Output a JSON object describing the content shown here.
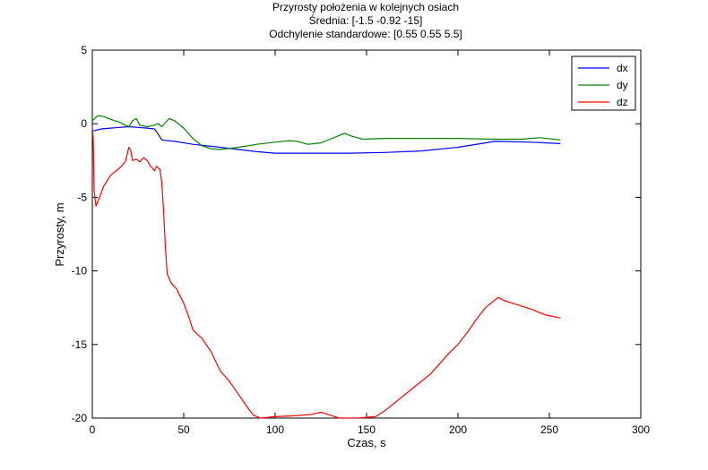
{
  "chart_data": {
    "type": "line",
    "title": [
      "Przyrosty położenia w kolejnych osiach",
      "Średnia: [-1.5 -0.92 -15]",
      "Odchylenie standardowe: [0.55 0.55 5.5]"
    ],
    "xlabel": "Czas, s",
    "ylabel": "Przyrosty, m",
    "xlim": [
      0,
      300
    ],
    "ylim": [
      -20,
      5
    ],
    "xticks": [
      0,
      50,
      100,
      150,
      200,
      250,
      300
    ],
    "yticks": [
      5,
      0,
      -5,
      -10,
      -15,
      -20
    ],
    "grid": false,
    "legend_position": "top-right",
    "series": [
      {
        "name": "dx",
        "color": "#0000ff",
        "points": [
          [
            0,
            -0.5
          ],
          [
            5,
            -0.35
          ],
          [
            10,
            -0.3
          ],
          [
            15,
            -0.25
          ],
          [
            20,
            -0.2
          ],
          [
            25,
            -0.25
          ],
          [
            30,
            -0.3
          ],
          [
            34,
            -0.35
          ],
          [
            36,
            -0.7
          ],
          [
            38,
            -1.1
          ],
          [
            45,
            -1.2
          ],
          [
            55,
            -1.4
          ],
          [
            70,
            -1.6
          ],
          [
            80,
            -1.75
          ],
          [
            90,
            -1.9
          ],
          [
            100,
            -2.0
          ],
          [
            120,
            -2.0
          ],
          [
            140,
            -2.0
          ],
          [
            160,
            -1.95
          ],
          [
            180,
            -1.85
          ],
          [
            200,
            -1.6
          ],
          [
            215,
            -1.3
          ],
          [
            220,
            -1.2
          ],
          [
            240,
            -1.25
          ],
          [
            256,
            -1.35
          ]
        ]
      },
      {
        "name": "dy",
        "color": "#008000",
        "points": [
          [
            0,
            0.2
          ],
          [
            3,
            0.55
          ],
          [
            6,
            0.5
          ],
          [
            10,
            0.3
          ],
          [
            15,
            0.1
          ],
          [
            18,
            -0.1
          ],
          [
            20,
            -0.2
          ],
          [
            22,
            0.2
          ],
          [
            24,
            0.35
          ],
          [
            26,
            -0.1
          ],
          [
            30,
            -0.2
          ],
          [
            34,
            -0.1
          ],
          [
            36,
            0.0
          ],
          [
            38,
            -0.2
          ],
          [
            42,
            0.35
          ],
          [
            45,
            0.2
          ],
          [
            50,
            -0.3
          ],
          [
            55,
            -1.0
          ],
          [
            60,
            -1.5
          ],
          [
            65,
            -1.7
          ],
          [
            70,
            -1.75
          ],
          [
            80,
            -1.6
          ],
          [
            90,
            -1.4
          ],
          [
            100,
            -1.25
          ],
          [
            108,
            -1.15
          ],
          [
            112,
            -1.2
          ],
          [
            118,
            -1.4
          ],
          [
            125,
            -1.3
          ],
          [
            130,
            -1.05
          ],
          [
            134,
            -0.85
          ],
          [
            138,
            -0.65
          ],
          [
            142,
            -0.85
          ],
          [
            148,
            -1.05
          ],
          [
            160,
            -1.0
          ],
          [
            180,
            -1.0
          ],
          [
            200,
            -1.0
          ],
          [
            220,
            -1.05
          ],
          [
            235,
            -1.05
          ],
          [
            245,
            -0.95
          ],
          [
            256,
            -1.1
          ]
        ]
      },
      {
        "name": "dz",
        "color": "#ff0000",
        "points": [
          [
            0,
            -0.2
          ],
          [
            0.5,
            -1.0
          ],
          [
            1,
            -4.5
          ],
          [
            2,
            -5.6
          ],
          [
            4,
            -5.0
          ],
          [
            6,
            -4.3
          ],
          [
            10,
            -3.5
          ],
          [
            15,
            -3.0
          ],
          [
            18,
            -2.6
          ],
          [
            19,
            -2.1
          ],
          [
            20,
            -1.6
          ],
          [
            21,
            -1.8
          ],
          [
            22,
            -2.5
          ],
          [
            24,
            -2.4
          ],
          [
            26,
            -2.6
          ],
          [
            28,
            -2.3
          ],
          [
            30,
            -2.5
          ],
          [
            32,
            -2.9
          ],
          [
            34,
            -3.2
          ],
          [
            35,
            -2.9
          ],
          [
            37,
            -3.1
          ],
          [
            38,
            -4.0
          ],
          [
            39,
            -6.0
          ],
          [
            40,
            -8.5
          ],
          [
            41,
            -10.2
          ],
          [
            43,
            -10.8
          ],
          [
            46,
            -11.2
          ],
          [
            50,
            -12.2
          ],
          [
            53,
            -13.2
          ],
          [
            55,
            -14.0
          ],
          [
            60,
            -14.6
          ],
          [
            65,
            -15.5
          ],
          [
            70,
            -16.8
          ],
          [
            75,
            -17.5
          ],
          [
            80,
            -18.4
          ],
          [
            85,
            -19.3
          ],
          [
            88,
            -19.8
          ],
          [
            92,
            -20.0
          ],
          [
            100,
            -19.9
          ],
          [
            110,
            -19.85
          ],
          [
            115,
            -19.8
          ],
          [
            120,
            -19.75
          ],
          [
            125,
            -19.6
          ],
          [
            130,
            -19.8
          ],
          [
            135,
            -20.0
          ],
          [
            145,
            -20.0
          ],
          [
            155,
            -19.9
          ],
          [
            160,
            -19.5
          ],
          [
            165,
            -19.0
          ],
          [
            170,
            -18.5
          ],
          [
            175,
            -18.0
          ],
          [
            180,
            -17.5
          ],
          [
            185,
            -17.0
          ],
          [
            190,
            -16.3
          ],
          [
            195,
            -15.6
          ],
          [
            200,
            -15.0
          ],
          [
            205,
            -14.2
          ],
          [
            210,
            -13.3
          ],
          [
            215,
            -12.5
          ],
          [
            220,
            -12.0
          ],
          [
            222,
            -11.8
          ],
          [
            225,
            -12.0
          ],
          [
            230,
            -12.2
          ],
          [
            240,
            -12.6
          ],
          [
            248,
            -13.0
          ],
          [
            256,
            -13.2
          ]
        ]
      }
    ]
  }
}
